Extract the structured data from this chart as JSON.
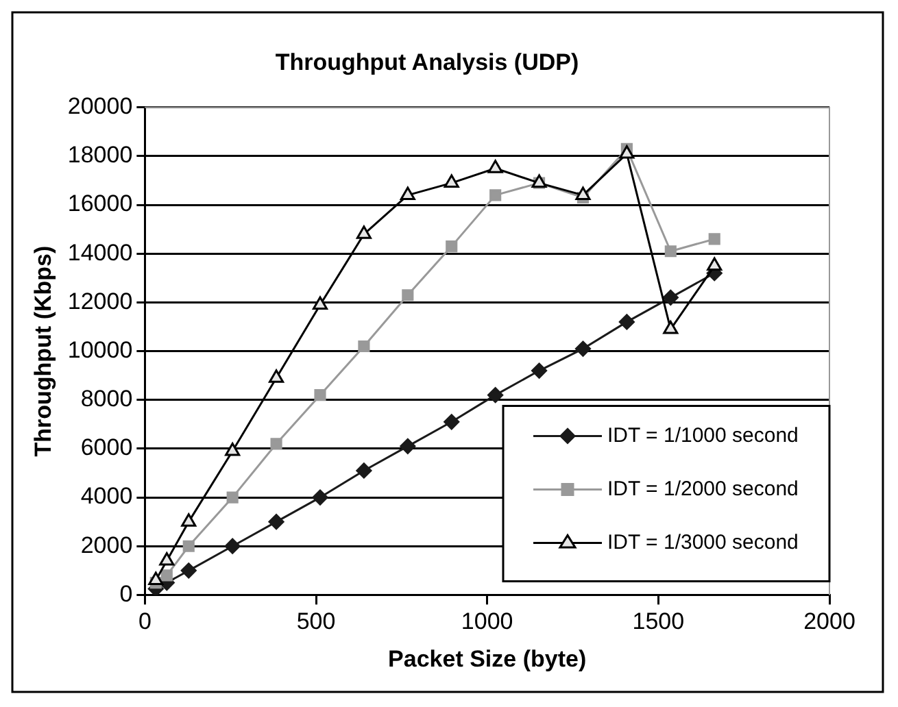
{
  "chart_data": {
    "type": "line",
    "title": "Throughput Analysis (UDP)",
    "xlabel": "Packet Size (byte)",
    "ylabel": "Throughput (Kbps)",
    "x": [
      32,
      64,
      128,
      256,
      384,
      512,
      640,
      768,
      896,
      1024,
      1152,
      1280,
      1408,
      1536,
      1664
    ],
    "series": [
      {
        "name": "IDT = 1/1000 second",
        "color": "#1a1a1a",
        "marker": "diamond",
        "values": [
          250,
          500,
          1000,
          2000,
          3000,
          4000,
          5100,
          6100,
          7100,
          8200,
          9200,
          10100,
          11200,
          12200,
          13200
        ]
      },
      {
        "name": "IDT = 1/2000 second",
        "color": "#999999",
        "marker": "square",
        "values": [
          500,
          800,
          2000,
          4000,
          6200,
          8200,
          10200,
          12300,
          14300,
          16400,
          16900,
          16300,
          18300,
          14100,
          14600
        ]
      },
      {
        "name": "IDT = 1/3000 second",
        "color": "#000000",
        "marker": "triangle",
        "values": [
          600,
          1400,
          3000,
          5900,
          8900,
          11900,
          14800,
          16400,
          16900,
          17500,
          16900,
          16400,
          18100,
          10900,
          13500
        ]
      }
    ],
    "xlim": [
      0,
      2000
    ],
    "xticks": [
      0,
      500,
      1000,
      1500,
      2000
    ],
    "ylim": [
      0,
      20000
    ],
    "yticks": [
      0,
      2000,
      4000,
      6000,
      8000,
      10000,
      12000,
      14000,
      16000,
      18000,
      20000
    ],
    "grid": "y",
    "legend": "bottom right",
    "line_style": "solid"
  }
}
